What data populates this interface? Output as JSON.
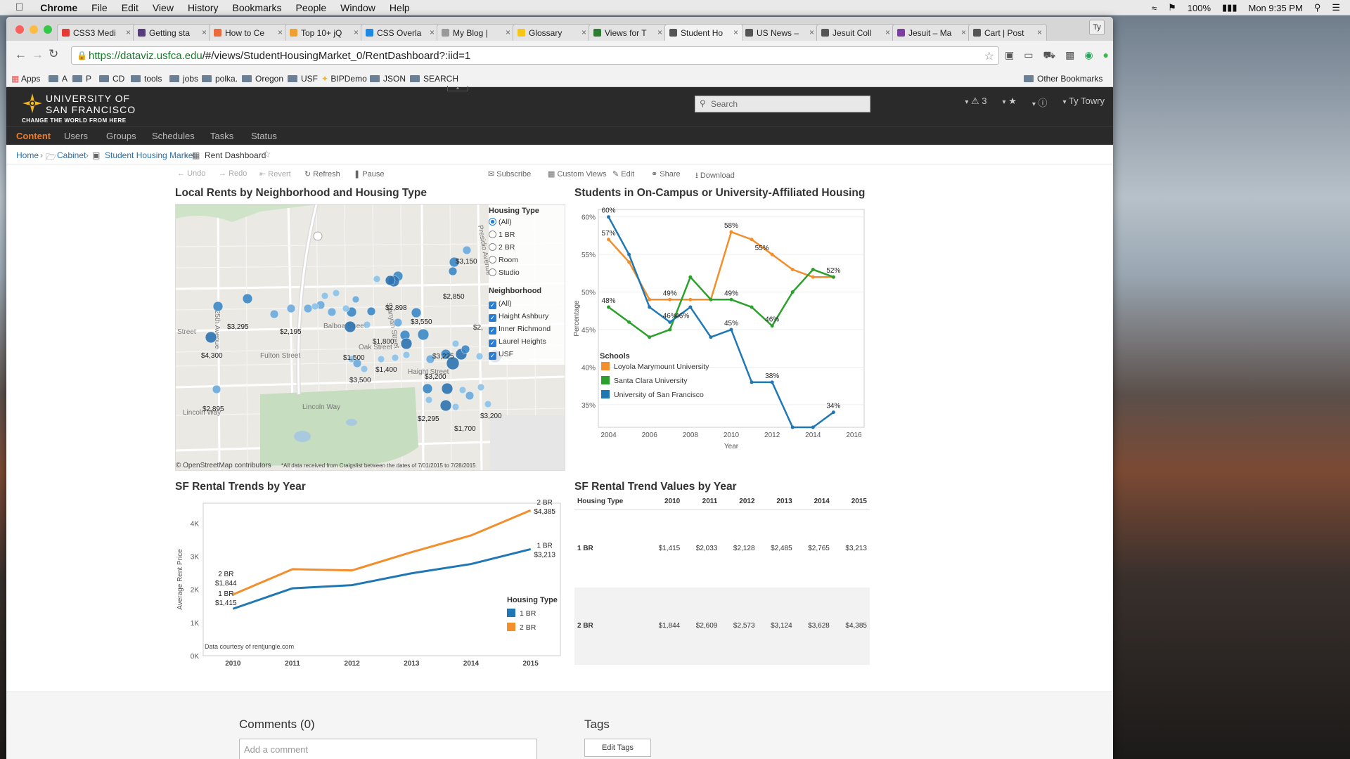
{
  "macmenu": {
    "app": "Chrome",
    "items": [
      "File",
      "Edit",
      "View",
      "History",
      "Bookmarks",
      "People",
      "Window",
      "Help"
    ],
    "battery": "100%",
    "clock": "Mon 9:35 PM"
  },
  "browser": {
    "tabs": [
      {
        "label": "CSS3 Medi",
        "color": "#e53935"
      },
      {
        "label": "Getting sta",
        "color": "#563d7c"
      },
      {
        "label": "How to Ce",
        "color": "#e96a3b"
      },
      {
        "label": "Top 10+ jQ",
        "color": "#f0a030"
      },
      {
        "label": "CSS Overla",
        "color": "#1e88e5"
      },
      {
        "label": "My Blog | ",
        "color": "#999"
      },
      {
        "label": "Glossary",
        "color": "#f5c518"
      },
      {
        "label": "Views for T",
        "color": "#2e7d32"
      },
      {
        "label": "Student Ho",
        "color": "#555"
      },
      {
        "label": "US News –",
        "color": "#555"
      },
      {
        "label": "Jesuit Coll",
        "color": "#555"
      },
      {
        "label": "Jesuit – Ma",
        "color": "#7b3fa0"
      },
      {
        "label": "Cart | Post",
        "color": "#555"
      }
    ],
    "profile": "Ty",
    "url_host": "https://dataviz.usfca.edu",
    "url_path": "/#/views/StudentHousingMarket_0/RentDashboard?:iid=1",
    "bookmarks": [
      "Apps",
      "A",
      "P",
      "CD",
      "tools",
      "jobs",
      "polka.",
      "Oregon",
      "USF",
      "BIPDemo",
      "JSON",
      "SEARCH"
    ],
    "other_bookmarks": "Other Bookmarks"
  },
  "header": {
    "logo_line1": "UNIVERSITY OF",
    "logo_line2": "SAN FRANCISCO",
    "tagline": "CHANGE THE WORLD FROM HERE",
    "search_placeholder": "Search",
    "alerts": "3",
    "user": "Ty Towry"
  },
  "nav": {
    "items": [
      "Content",
      "Users",
      "Groups",
      "Schedules",
      "Tasks",
      "Status"
    ]
  },
  "breadcrumb": {
    "home": "Home",
    "cabinet": "Cabinet",
    "project": "Student Housing Market",
    "view": "Rent Dashboard"
  },
  "vizbar": {
    "undo": "Undo",
    "redo": "Redo",
    "revert": "Revert",
    "refresh": "Refresh",
    "pause": "Pause",
    "subscribe": "Subscribe",
    "custom_views": "Custom Views",
    "edit": "Edit",
    "share": "Share",
    "download": "Download"
  },
  "map": {
    "title": "Local Rents by Neighborhood and Housing Type",
    "attribution": "© OpenStreetMap contributors",
    "note": "*All data received from Craigslist between the dates of 7/01/2015 to 7/28/2015",
    "streets": [
      "Fulton Street",
      "Balboa Street",
      "Lincoln Way",
      "Lincoln Way",
      "Street",
      "Haight Street",
      "Oak Street",
      "Stanyan Street",
      "Presidio Avenue",
      "25th Avenue"
    ],
    "price_labels": [
      "$3,150",
      "$2,850",
      "$2,898",
      "$3,550",
      "$3,295",
      "$2,195",
      "$1,800",
      "$4,300",
      "$1,500",
      "$1,400",
      "$3,225",
      "$3,200",
      "$3,500",
      "$2,895",
      "$2,295",
      "$1,700",
      "$3,200",
      "$2,"
    ],
    "housing_type": {
      "title": "Housing Type",
      "options": [
        "(All)",
        "1 BR",
        "2 BR",
        "Room",
        "Studio"
      ],
      "selected": "(All)"
    },
    "neighborhood": {
      "title": "Neighborhood",
      "options": [
        "(All)",
        "Haight Ashbury",
        "Inner Richmond",
        "Laurel Heights",
        "USF"
      ]
    }
  },
  "chart_data": [
    {
      "type": "line",
      "title": "Students in On-Campus or University-Affiliated Housing",
      "xlabel": "Year",
      "ylabel": "Percentage",
      "xlim": [
        2003.5,
        2016.5
      ],
      "ylim": [
        32,
        61
      ],
      "xticks": [
        2004,
        2006,
        2008,
        2010,
        2012,
        2014,
        2016
      ],
      "yticks": [
        "35%",
        "40%",
        "45%",
        "50%",
        "55%",
        "60%"
      ],
      "legend_title": "Schools",
      "series": [
        {
          "name": "Loyola Marymount University",
          "color": "#f28e2b",
          "x": [
            2004,
            2005,
            2006,
            2007,
            2008,
            2009,
            2010,
            2011,
            2012,
            2013,
            2014,
            2015
          ],
          "y": [
            57,
            54,
            49,
            49,
            49,
            49,
            58,
            57,
            55,
            53,
            52,
            52
          ]
        },
        {
          "name": "Santa Clara University",
          "color": "#2ca02c",
          "x": [
            2004,
            2005,
            2006,
            2007,
            2008,
            2009,
            2010,
            2011,
            2012,
            2013,
            2014,
            2015
          ],
          "y": [
            48,
            46,
            44,
            45,
            52,
            49,
            49,
            48,
            45.5,
            50,
            53,
            52
          ]
        },
        {
          "name": "University of San Francisco",
          "color": "#1f77b4",
          "x": [
            2004,
            2005,
            2006,
            2007,
            2008,
            2009,
            2010,
            2011,
            2012,
            2013,
            2014,
            2015
          ],
          "y": [
            60,
            55,
            48,
            46,
            48,
            44,
            45,
            38,
            38,
            32,
            32,
            34
          ]
        }
      ],
      "labels": [
        {
          "text": "60%",
          "x": 2004,
          "y": 60
        },
        {
          "text": "57%",
          "x": 2004,
          "y": 57
        },
        {
          "text": "48%",
          "x": 2004,
          "y": 48
        },
        {
          "text": "49%",
          "x": 2007,
          "y": 49
        },
        {
          "text": "46%",
          "x": 2007,
          "y": 46
        },
        {
          "text": "46%",
          "x": 2007.6,
          "y": 46
        },
        {
          "text": "58%",
          "x": 2010,
          "y": 58
        },
        {
          "text": "49%",
          "x": 2010,
          "y": 49
        },
        {
          "text": "45%",
          "x": 2010,
          "y": 45
        },
        {
          "text": "55%",
          "x": 2011.5,
          "y": 55
        },
        {
          "text": "46%",
          "x": 2012,
          "y": 45.5
        },
        {
          "text": "38%",
          "x": 2012,
          "y": 38
        },
        {
          "text": "52%",
          "x": 2015,
          "y": 52
        },
        {
          "text": "34%",
          "x": 2015,
          "y": 34
        }
      ]
    },
    {
      "type": "line",
      "title": "SF Rental Trends by Year",
      "xlabel": "",
      "ylabel": "Average Rent Price",
      "ylim": [
        0,
        4600
      ],
      "xlim": [
        2009.5,
        2015.5
      ],
      "xticks": [
        2010,
        2011,
        2012,
        2013,
        2014,
        2015
      ],
      "yticks": [
        "0K",
        "1K",
        "2K",
        "3K",
        "4K"
      ],
      "legend_title": "Housing Type",
      "note": "Data courtesy of rentjungle.com",
      "series": [
        {
          "name": "1 BR",
          "color": "#1f77b4",
          "x": [
            2010,
            2011,
            2012,
            2013,
            2014,
            2015
          ],
          "y": [
            1415,
            2033,
            2128,
            2485,
            2765,
            3213
          ],
          "start_label": "1 BR",
          "start_value": "$1,415",
          "end_label": "1 BR",
          "end_value": "$3,213"
        },
        {
          "name": "2 BR",
          "color": "#f28e2b",
          "x": [
            2010,
            2011,
            2012,
            2013,
            2014,
            2015
          ],
          "y": [
            1844,
            2609,
            2573,
            3124,
            3628,
            4385
          ],
          "start_label": "2 BR",
          "start_value": "$1,844",
          "end_label": "2 BR",
          "end_value": "$4,385"
        }
      ]
    },
    {
      "type": "table",
      "title": "SF Rental Trend Values by Year",
      "columns": [
        "Housing Type",
        "2010",
        "2011",
        "2012",
        "2013",
        "2014",
        "2015"
      ],
      "rows": [
        [
          "1 BR",
          "$1,415",
          "$2,033",
          "$2,128",
          "$2,485",
          "$2,765",
          "$3,213"
        ],
        [
          "2 BR",
          "$1,844",
          "$2,609",
          "$2,573",
          "$3,124",
          "$3,628",
          "$4,385"
        ]
      ]
    }
  ],
  "comments": {
    "title": "Comments (0)",
    "placeholder": "Add a comment",
    "tags_title": "Tags",
    "edit_tags": "Edit Tags"
  }
}
